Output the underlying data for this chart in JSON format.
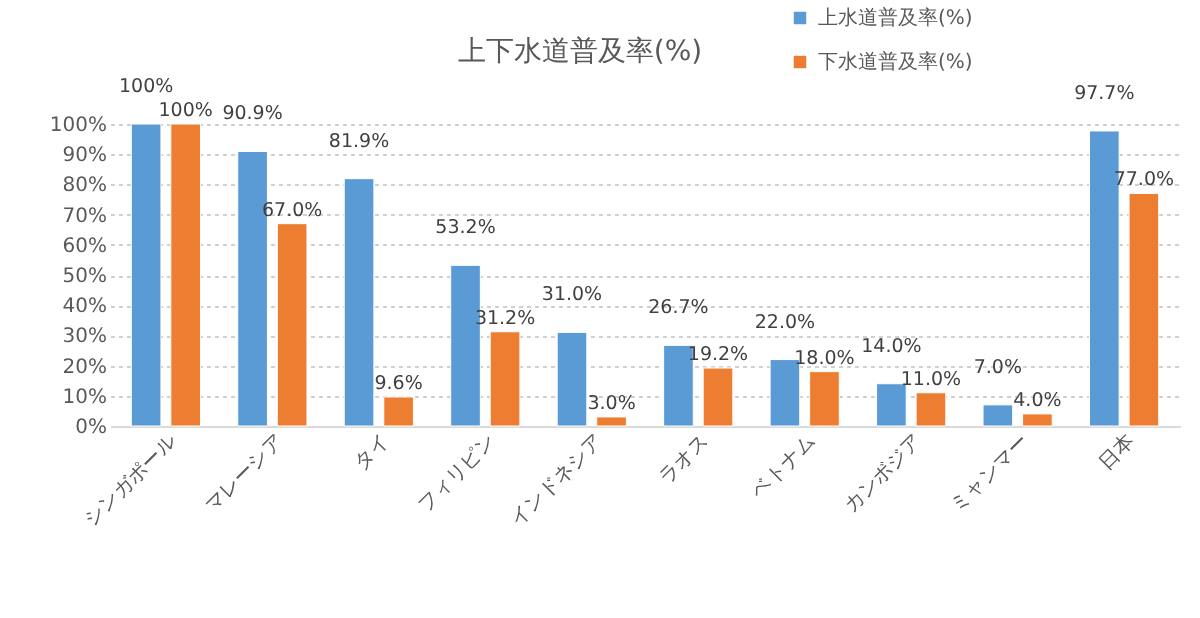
{
  "chart_data": {
    "type": "bar",
    "title": "上下水道普及率(%)",
    "categories": [
      "シンガポール",
      "マレーシア",
      "タイ",
      "フィリピン",
      "インドネシア",
      "ラオス",
      "ベトナム",
      "カンボジア",
      "ミャンマー",
      "日本"
    ],
    "series": [
      {
        "name": "上水道普及率(%)",
        "color": "#5b9bd5",
        "values": [
          100,
          90.9,
          81.9,
          53.2,
          31.0,
          26.7,
          22.0,
          14.0,
          7.0,
          97.7
        ],
        "value_labels": [
          "100%",
          "90.9%",
          "81.9%",
          "53.2%",
          "31.0%",
          "26.7%",
          "22.0%",
          "14.0%",
          "7.0%",
          "97.7%"
        ]
      },
      {
        "name": "下水道普及率(%)",
        "color": "#ed7d31",
        "values": [
          100,
          67.0,
          9.6,
          31.2,
          3.0,
          19.2,
          18.0,
          11.0,
          4.0,
          77.0
        ],
        "value_labels": [
          "100%",
          "67.0%",
          "9.6%",
          "31.2%",
          "3.0%",
          "19.2%",
          "18.0%",
          "11.0%",
          "4.0%",
          "77.0%"
        ]
      }
    ],
    "ylim": [
      0,
      100
    ],
    "yticks": [
      {
        "value": 0,
        "label": "0%"
      },
      {
        "value": 10,
        "label": "10%"
      },
      {
        "value": 20,
        "label": "20%"
      },
      {
        "value": 30,
        "label": "30%"
      },
      {
        "value": 40,
        "label": "40%"
      },
      {
        "value": 50,
        "label": "50%"
      },
      {
        "value": 60,
        "label": "60%"
      },
      {
        "value": 70,
        "label": "70%"
      },
      {
        "value": 80,
        "label": "80%"
      },
      {
        "value": 90,
        "label": "90%"
      },
      {
        "value": 100,
        "label": "100%"
      }
    ],
    "grid": "y",
    "legend": "top right"
  }
}
